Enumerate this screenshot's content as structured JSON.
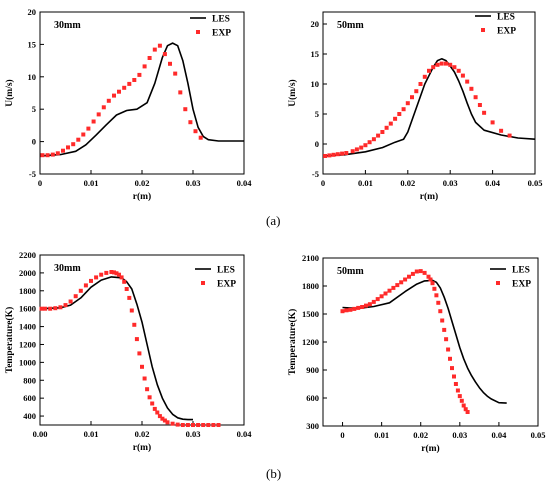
{
  "panel_labels": [
    "(a)",
    "(b)"
  ],
  "chart_data": [
    {
      "type": "line",
      "title": "30mm",
      "xlabel": "r(m)",
      "ylabel": "U(m/s)",
      "xlim": [
        0,
        0.04
      ],
      "ylim": [
        -5,
        20
      ],
      "xticks": [
        0,
        0.01,
        0.02,
        0.03,
        0.04
      ],
      "yticks": [
        -5,
        0,
        5,
        10,
        15,
        20
      ],
      "xtick_labels": [
        "0",
        "0.01",
        "0.02",
        "0.03",
        "0.04"
      ],
      "ytick_labels": [
        "-5",
        "0",
        "5",
        "10",
        "15",
        "20"
      ],
      "legend": "top-right",
      "grid": false,
      "series": [
        {
          "name": "LES",
          "style": "line",
          "color": "#000000",
          "x": [
            0,
            0.004,
            0.007,
            0.009,
            0.011,
            0.013,
            0.015,
            0.017,
            0.019,
            0.021,
            0.0225,
            0.024,
            0.025,
            0.026,
            0.027,
            0.028,
            0.029,
            0.03,
            0.031,
            0.032,
            0.033,
            0.035,
            0.038,
            0.04
          ],
          "y": [
            -2.2,
            -2.0,
            -1.5,
            -0.5,
            1.0,
            2.6,
            4.1,
            4.8,
            5.0,
            6.0,
            9.0,
            13.0,
            14.8,
            15.2,
            14.8,
            12.5,
            9.0,
            5.0,
            2.2,
            0.8,
            0.3,
            0.1,
            0.1,
            0.1
          ]
        },
        {
          "name": "EXP",
          "style": "marker",
          "color": "#ff2a2a",
          "x": [
            0.0005,
            0.0015,
            0.0025,
            0.0035,
            0.0045,
            0.0055,
            0.0065,
            0.0075,
            0.0085,
            0.0095,
            0.0105,
            0.0115,
            0.0125,
            0.0135,
            0.0145,
            0.0155,
            0.0165,
            0.0175,
            0.0185,
            0.0195,
            0.0205,
            0.0215,
            0.0225,
            0.0235,
            0.0245,
            0.0255,
            0.0265,
            0.0275,
            0.0285,
            0.0295,
            0.0305,
            0.0315
          ],
          "y": [
            -2.1,
            -2.1,
            -2.0,
            -1.8,
            -1.4,
            -0.9,
            -0.4,
            0.3,
            1.1,
            2.0,
            3.1,
            4.2,
            5.3,
            6.3,
            7.1,
            7.7,
            8.3,
            8.9,
            9.5,
            10.3,
            11.6,
            12.9,
            14.2,
            14.8,
            13.5,
            12.0,
            10.5,
            7.6,
            5.0,
            3.0,
            1.6,
            0.6
          ]
        }
      ]
    },
    {
      "type": "line",
      "title": "50mm",
      "xlabel": "r(m)",
      "ylabel": "U(m/s)",
      "xlim": [
        0,
        0.05
      ],
      "ylim": [
        -5,
        22
      ],
      "xticks": [
        0,
        0.01,
        0.02,
        0.03,
        0.04,
        0.05
      ],
      "yticks": [
        -5,
        0,
        5,
        10,
        15,
        20
      ],
      "xtick_labels": [
        "0",
        "0.01",
        "0.02",
        "0.03",
        "0.04",
        "0.05"
      ],
      "ytick_labels": [
        "-5",
        "0",
        "5",
        "10",
        "15",
        "20"
      ],
      "legend": "top-right",
      "grid": false,
      "series": [
        {
          "name": "LES",
          "style": "line",
          "color": "#000000",
          "x": [
            0,
            0.005,
            0.01,
            0.014,
            0.017,
            0.019,
            0.02,
            0.022,
            0.024,
            0.026,
            0.027,
            0.028,
            0.029,
            0.03,
            0.031,
            0.032,
            0.033,
            0.034,
            0.035,
            0.036,
            0.038,
            0.042,
            0.046,
            0.05
          ],
          "y": [
            -2.0,
            -1.8,
            -1.3,
            -0.6,
            0.3,
            0.8,
            2.0,
            6.0,
            10.0,
            12.8,
            13.9,
            14.2,
            13.9,
            13.0,
            12.0,
            10.5,
            8.8,
            6.8,
            5.0,
            3.6,
            2.3,
            1.5,
            1.0,
            0.8
          ]
        },
        {
          "name": "EXP",
          "style": "marker",
          "color": "#ff2a2a",
          "x": [
            0.0005,
            0.0015,
            0.0025,
            0.0035,
            0.0045,
            0.0055,
            0.007,
            0.008,
            0.009,
            0.01,
            0.011,
            0.012,
            0.013,
            0.014,
            0.015,
            0.016,
            0.017,
            0.018,
            0.019,
            0.02,
            0.021,
            0.022,
            0.023,
            0.024,
            0.025,
            0.026,
            0.027,
            0.028,
            0.029,
            0.03,
            0.031,
            0.032,
            0.033,
            0.034,
            0.035,
            0.036,
            0.037,
            0.038,
            0.04,
            0.042,
            0.044
          ],
          "y": [
            -2.0,
            -1.9,
            -1.8,
            -1.7,
            -1.6,
            -1.5,
            -1.2,
            -0.9,
            -0.6,
            -0.2,
            0.3,
            0.8,
            1.4,
            2.0,
            2.7,
            3.4,
            4.2,
            5.0,
            5.8,
            6.8,
            7.8,
            8.8,
            10.0,
            11.2,
            12.2,
            12.8,
            13.2,
            13.4,
            13.4,
            13.2,
            12.8,
            12.2,
            11.4,
            10.4,
            9.2,
            7.8,
            6.5,
            5.2,
            3.6,
            2.2,
            1.4
          ]
        }
      ]
    },
    {
      "type": "line",
      "title": "30mm",
      "xlabel": "r(m)",
      "ylabel": "Temperature(K)",
      "xlim": [
        0,
        0.04
      ],
      "ylim": [
        300,
        2200
      ],
      "xticks": [
        0,
        0.01,
        0.02,
        0.03,
        0.04
      ],
      "yticks": [
        400,
        600,
        800,
        1000,
        1200,
        1400,
        1600,
        1800,
        2000,
        2200
      ],
      "xtick_labels": [
        "0.00",
        "0.01",
        "0.02",
        "0.03",
        "0.04"
      ],
      "ytick_labels": [
        "400",
        "600",
        "800",
        "1000",
        "1200",
        "1400",
        "1600",
        "1800",
        "2000",
        "2200"
      ],
      "legend": "top-right",
      "grid": false,
      "series": [
        {
          "name": "LES",
          "style": "line",
          "color": "#000000",
          "x": [
            0,
            0.004,
            0.006,
            0.008,
            0.01,
            0.012,
            0.014,
            0.016,
            0.017,
            0.018,
            0.019,
            0.02,
            0.021,
            0.022,
            0.023,
            0.024,
            0.025,
            0.026,
            0.027,
            0.028,
            0.029,
            0.03
          ],
          "y": [
            1600,
            1610,
            1640,
            1720,
            1840,
            1920,
            1955,
            1945,
            1900,
            1820,
            1650,
            1450,
            1200,
            950,
            750,
            600,
            490,
            420,
            380,
            365,
            360,
            360
          ]
        },
        {
          "name": "EXP",
          "style": "marker",
          "color": "#ff2a2a",
          "x": [
            0.0003,
            0.001,
            0.002,
            0.003,
            0.004,
            0.005,
            0.006,
            0.007,
            0.008,
            0.009,
            0.01,
            0.011,
            0.012,
            0.013,
            0.014,
            0.0145,
            0.015,
            0.0155,
            0.016,
            0.0165,
            0.017,
            0.0175,
            0.018,
            0.0185,
            0.019,
            0.0195,
            0.02,
            0.0205,
            0.021,
            0.0215,
            0.022,
            0.0225,
            0.023,
            0.0235,
            0.024,
            0.0245,
            0.025,
            0.026,
            0.027,
            0.028,
            0.029,
            0.03,
            0.031,
            0.032,
            0.033,
            0.034,
            0.035
          ],
          "y": [
            1600,
            1600,
            1600,
            1605,
            1615,
            1640,
            1680,
            1740,
            1800,
            1860,
            1910,
            1950,
            1980,
            2000,
            2010,
            2005,
            1995,
            1980,
            1950,
            1900,
            1820,
            1720,
            1580,
            1420,
            1260,
            1100,
            950,
            820,
            700,
            610,
            540,
            480,
            440,
            400,
            370,
            350,
            330,
            315,
            305,
            300,
            300,
            300,
            300,
            300,
            300,
            300,
            300
          ]
        }
      ]
    },
    {
      "type": "line",
      "title": "50mm",
      "xlabel": "r(m)",
      "ylabel": "Temperature(K)",
      "xlim": [
        -0.005,
        0.05
      ],
      "ylim": [
        300,
        2100
      ],
      "xticks": [
        0,
        0.01,
        0.02,
        0.03,
        0.04,
        0.05
      ],
      "yticks": [
        300,
        600,
        900,
        1200,
        1500,
        1800,
        2100
      ],
      "xtick_labels": [
        "0",
        "0.01",
        "0.02",
        "0.03",
        "0.04",
        "0.05"
      ],
      "ytick_labels": [
        "300",
        "600",
        "900",
        "1200",
        "1500",
        "1800",
        "2100"
      ],
      "legend": "top-right",
      "grid": false,
      "series": [
        {
          "name": "LES",
          "style": "line",
          "color": "#000000",
          "x": [
            0,
            0.004,
            0.008,
            0.012,
            0.016,
            0.019,
            0.021,
            0.023,
            0.024,
            0.025,
            0.026,
            0.027,
            0.028,
            0.029,
            0.03,
            0.031,
            0.032,
            0.033,
            0.034,
            0.035,
            0.036,
            0.037,
            0.038,
            0.04,
            0.042
          ],
          "y": [
            1570,
            1560,
            1580,
            1620,
            1740,
            1820,
            1855,
            1860,
            1840,
            1780,
            1680,
            1560,
            1420,
            1280,
            1140,
            1020,
            920,
            840,
            770,
            710,
            660,
            620,
            590,
            550,
            545
          ]
        },
        {
          "name": "EXP",
          "style": "marker",
          "color": "#ff2a2a",
          "x": [
            0,
            0.001,
            0.002,
            0.003,
            0.004,
            0.005,
            0.006,
            0.007,
            0.008,
            0.009,
            0.01,
            0.011,
            0.012,
            0.013,
            0.014,
            0.015,
            0.016,
            0.017,
            0.018,
            0.019,
            0.02,
            0.021,
            0.022,
            0.0225,
            0.023,
            0.0235,
            0.024,
            0.0245,
            0.025,
            0.0255,
            0.026,
            0.0265,
            0.027,
            0.0275,
            0.028,
            0.0285,
            0.029,
            0.0295,
            0.03,
            0.0305,
            0.031,
            0.0315,
            0.032
          ],
          "y": [
            1530,
            1540,
            1545,
            1555,
            1565,
            1575,
            1590,
            1605,
            1630,
            1660,
            1690,
            1720,
            1750,
            1780,
            1810,
            1840,
            1870,
            1900,
            1930,
            1955,
            1960,
            1940,
            1900,
            1870,
            1830,
            1770,
            1700,
            1620,
            1530,
            1430,
            1330,
            1230,
            1120,
            1020,
            920,
            830,
            750,
            680,
            620,
            570,
            520,
            480,
            450
          ]
        }
      ]
    }
  ]
}
